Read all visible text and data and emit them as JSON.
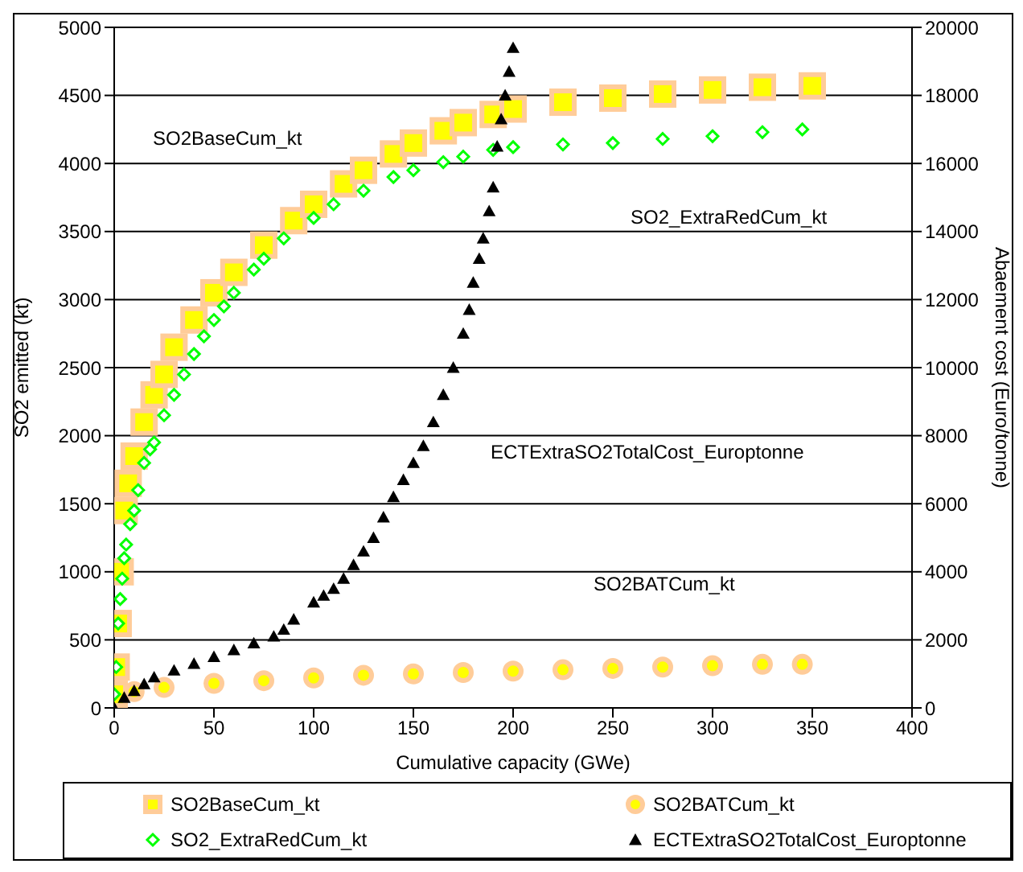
{
  "chart_data": {
    "type": "scatter",
    "xlabel": "Cumulative capacity (GWe)",
    "ylabel": "SO2 emitted (kt)",
    "y2label": "Abaement cost (Euro/tonne)",
    "xlim": [
      0,
      400
    ],
    "xticks": [
      0,
      50,
      100,
      150,
      200,
      250,
      300,
      350,
      400
    ],
    "ylim": [
      0,
      5000
    ],
    "yticks": [
      0,
      500,
      1000,
      1500,
      2000,
      2500,
      3000,
      3500,
      4000,
      4500,
      5000
    ],
    "y2lim": [
      0,
      20000
    ],
    "y2ticks": [
      0,
      2000,
      4000,
      6000,
      8000,
      10000,
      12000,
      14000,
      16000,
      18000,
      20000
    ],
    "grid": "y",
    "legend": "bottom",
    "series": [
      {
        "name": "SO2BaseCum_kt",
        "color": "#ffff00",
        "marker": "square",
        "x": [
          0,
          1,
          2,
          3,
          5,
          7,
          10,
          15,
          20,
          25,
          30,
          40,
          50,
          60,
          75,
          90,
          100,
          115,
          125,
          140,
          150,
          165,
          175,
          190,
          200,
          225,
          250,
          275,
          300,
          325,
          350
        ],
        "values": [
          100,
          300,
          620,
          1000,
          1450,
          1650,
          1850,
          2100,
          2300,
          2450,
          2650,
          2850,
          3050,
          3200,
          3400,
          3580,
          3700,
          3850,
          3950,
          4070,
          4150,
          4240,
          4300,
          4360,
          4400,
          4450,
          4480,
          4510,
          4540,
          4560,
          4570
        ]
      },
      {
        "name": "SO2BATCum_kt",
        "color": "#ffff00",
        "marker": "circle",
        "x": [
          10,
          25,
          50,
          75,
          100,
          125,
          150,
          175,
          200,
          225,
          250,
          275,
          300,
          325,
          345
        ],
        "values": [
          120,
          150,
          180,
          200,
          220,
          240,
          250,
          260,
          270,
          280,
          290,
          300,
          310,
          320,
          320
        ]
      },
      {
        "name": "SO2_ExtraRedCum_kt",
        "color": "#00ff00",
        "marker": "diamond",
        "x": [
          0,
          1,
          2,
          3,
          4,
          5,
          6,
          8,
          10,
          12,
          15,
          18,
          20,
          25,
          30,
          35,
          40,
          45,
          50,
          55,
          60,
          70,
          75,
          85,
          100,
          110,
          125,
          140,
          150,
          165,
          175,
          190,
          200,
          225,
          250,
          275,
          300,
          325,
          345
        ],
        "values": [
          100,
          300,
          620,
          800,
          950,
          1100,
          1200,
          1350,
          1450,
          1600,
          1800,
          1900,
          1950,
          2150,
          2300,
          2450,
          2600,
          2730,
          2850,
          2950,
          3050,
          3220,
          3300,
          3450,
          3600,
          3700,
          3800,
          3900,
          3950,
          4010,
          4050,
          4100,
          4120,
          4140,
          4150,
          4180,
          4200,
          4230,
          4250
        ]
      },
      {
        "name": "ECTExtraSO2TotalCost_Europtonne",
        "color": "#000000",
        "marker": "triangle",
        "axis": "y2",
        "x": [
          0,
          5,
          10,
          15,
          20,
          30,
          40,
          50,
          60,
          70,
          80,
          85,
          90,
          100,
          105,
          110,
          115,
          120,
          125,
          130,
          135,
          140,
          145,
          150,
          155,
          160,
          165,
          170,
          175,
          178,
          180,
          183,
          185,
          188,
          190,
          192,
          194,
          196,
          198,
          200
        ],
        "values": [
          0,
          300,
          500,
          700,
          900,
          1100,
          1300,
          1500,
          1700,
          1900,
          2100,
          2300,
          2600,
          3100,
          3300,
          3500,
          3800,
          4200,
          4600,
          5000,
          5600,
          6200,
          6700,
          7200,
          7700,
          8400,
          9200,
          10000,
          11000,
          11700,
          12500,
          13200,
          13800,
          14600,
          15300,
          16500,
          17300,
          18000,
          18700,
          19400
        ]
      }
    ],
    "annotations": [
      "SO2BaseCum_kt",
      "SO2_ExtraRedCum_kt",
      "ECTExtraSO2TotalCost_Europtonne",
      "SO2BATCum_kt"
    ]
  }
}
